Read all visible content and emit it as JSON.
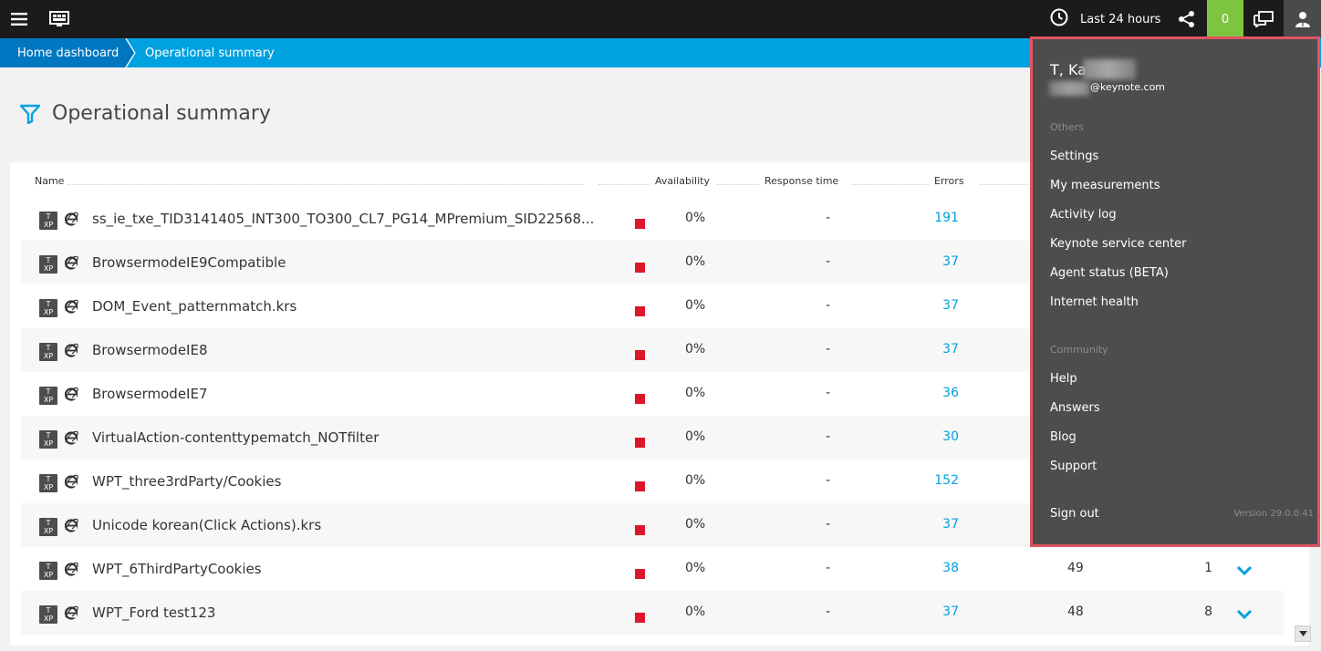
{
  "header": {
    "timeframe_label": "Last 24 hours",
    "problems_count": "0"
  },
  "breadcrumb": {
    "home": "Home dashboard",
    "current": "Operational summary"
  },
  "page": {
    "title": "Operational summary"
  },
  "table": {
    "columns": {
      "name": "Name",
      "availability": "Availability",
      "response_time": "Response time",
      "errors": "Errors"
    },
    "rows": [
      {
        "name": "ss_ie_txe_TID3141405_INT300_TO300_CL7_PG14_MPremium_SID22568...",
        "availability": "0%",
        "response_time": "-",
        "errors": "191"
      },
      {
        "name": "BrowsermodeIE9Compatible",
        "availability": "0%",
        "response_time": "-",
        "errors": "37"
      },
      {
        "name": "DOM_Event_patternmatch.krs",
        "availability": "0%",
        "response_time": "-",
        "errors": "37"
      },
      {
        "name": "BrowsermodeIE8",
        "availability": "0%",
        "response_time": "-",
        "errors": "37"
      },
      {
        "name": "BrowsermodeIE7",
        "availability": "0%",
        "response_time": "-",
        "errors": "36"
      },
      {
        "name": "VirtualAction-contenttypematch_NOTfilter",
        "availability": "0%",
        "response_time": "-",
        "errors": "30"
      },
      {
        "name": "WPT_three3rdParty/Cookies",
        "availability": "0%",
        "response_time": "-",
        "errors": "152"
      },
      {
        "name": "Unicode korean(Click Actions).krs",
        "availability": "0%",
        "response_time": "-",
        "errors": "37"
      },
      {
        "name": "WPT_6ThirdPartyCookies",
        "availability": "0%",
        "response_time": "-",
        "errors": "38",
        "col5": "49",
        "col6": "1"
      },
      {
        "name": "WPT_Ford test123",
        "availability": "0%",
        "response_time": "-",
        "errors": "37",
        "col5": "48",
        "col6": "8"
      }
    ],
    "icon_text": {
      "top": "T",
      "bottom": "XP"
    }
  },
  "user_menu": {
    "name_visible": "T, Ka",
    "email_visible": "@keynote.com",
    "sections": {
      "others": "Others",
      "community": "Community"
    },
    "others_items": [
      "Settings",
      "My measurements",
      "Activity log",
      "Keynote service center",
      "Agent status (BETA)",
      "Internet health"
    ],
    "community_items": [
      "Help",
      "Answers",
      "Blog",
      "Support"
    ],
    "sign_out": "Sign out",
    "version": "Version 29.0.0.41"
  },
  "colors": {
    "topbar": "#1b1b1b",
    "breadcrumb_bar": "#00a1e0",
    "breadcrumb_home": "#0077c0",
    "problems_badge": "#7dc540",
    "availability_bad": "#dc172a",
    "link": "#00a1e0",
    "menu_bg": "#4d4d4d",
    "menu_highlight_border": "#e05560"
  },
  "icons": [
    "hamburger-icon",
    "monitor-icon",
    "clock-icon",
    "share-icon",
    "chat-icon",
    "user-icon",
    "filter-icon",
    "ie-icon",
    "chevron-down-icon"
  ]
}
